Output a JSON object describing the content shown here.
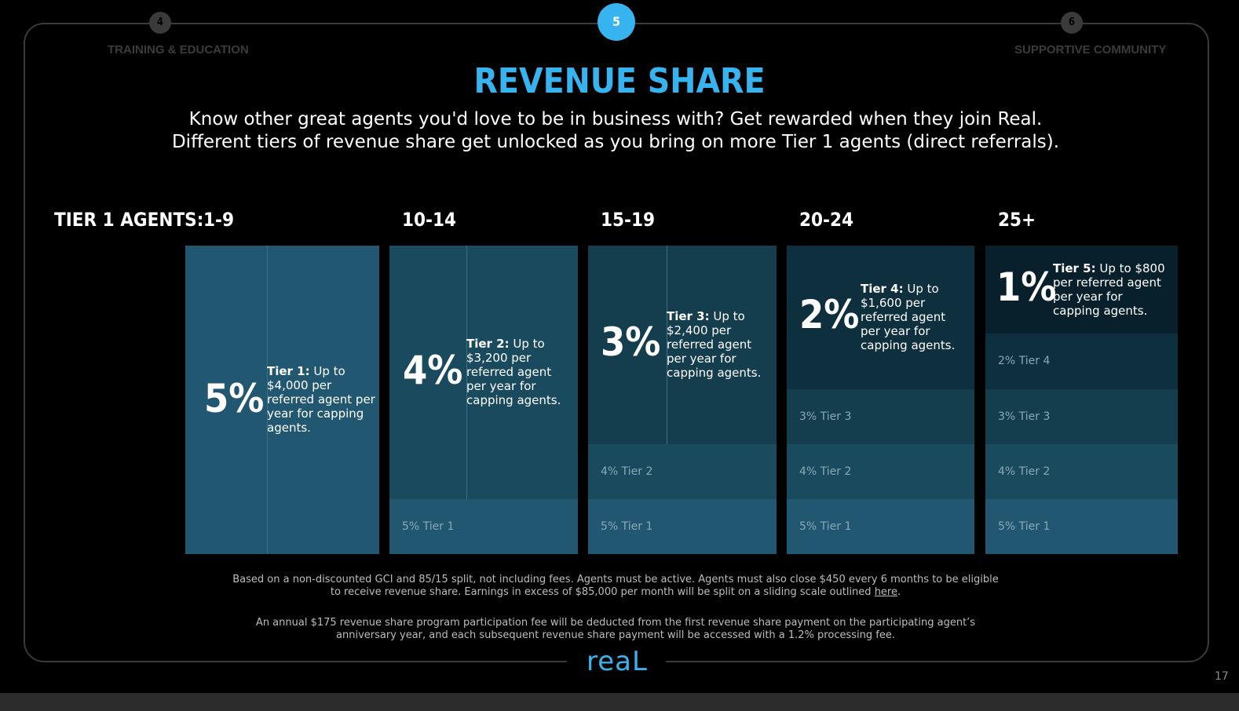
{
  "steps": {
    "prev": {
      "number": "4",
      "label": "TRAINING & EDUCATION"
    },
    "current": {
      "number": "5"
    },
    "next": {
      "number": "6",
      "label": "SUPPORTIVE COMMUNITY"
    }
  },
  "title": "REVENUE SHARE",
  "subtitle": {
    "line1": "Know other great agents you'd love to be in business with? Get rewarded when they join Real.",
    "line2": "Different tiers of revenue share get unlocked as you bring on more Tier 1 agents (direct referrals)."
  },
  "tier_agents_label": "TIER 1 AGENTS:",
  "columns": [
    {
      "range": "1-9",
      "pct": "5%",
      "tier_bold": "Tier 1:",
      "tier_text": " Up to $4,000 per referred agent per year for capping agents.",
      "bands": []
    },
    {
      "range": "10-14",
      "pct": "4%",
      "tier_bold": "Tier 2:",
      "tier_text": " Up to $3,200 per referred agent per year for capping agents.",
      "bands": [
        "5% Tier 1"
      ]
    },
    {
      "range": "15-19",
      "pct": "3%",
      "tier_bold": "Tier 3:",
      "tier_text": " Up to $2,400 per referred agent per year for capping agents.",
      "bands": [
        "4% Tier 2",
        "5% Tier 1"
      ]
    },
    {
      "range": "20-24",
      "pct": "2%",
      "tier_bold": "Tier 4:",
      "tier_text": " Up to $1,600 per referred agent per year for capping agents.",
      "bands": [
        "3% Tier 3",
        "4% Tier 2",
        "5% Tier 1"
      ]
    },
    {
      "range": "25+",
      "pct": "1%",
      "tier_bold": "Tier 5:",
      "tier_text": " Up to $800 per referred agent per year for capping agents.",
      "bands": [
        "2% Tier 4",
        "3% Tier 3",
        "4% Tier 2",
        "5% Tier 1"
      ]
    }
  ],
  "footnote1": {
    "line1": "Based on a non-discounted GCI and 85/15 split, not including fees. Agents must be active. Agents must also close $450 every 6 months to be eligible",
    "line2_pre": "to receive revenue share. Earnings in excess of $85,000 per month will be split on a sliding scale outlined ",
    "link": "here",
    "line2_post": "."
  },
  "footnote2": {
    "line1": "An annual $175 revenue share program participation fee will be deducted from the first revenue share payment on the participating agent’s",
    "line2": "anniversary year, and each subsequent revenue share payment will be accessed with a 1.2% processing fee."
  },
  "logo_text": "reaL",
  "page_number": "17",
  "colors": {
    "accent": "#37b3ef",
    "tier1": "#215770",
    "tier2": "#1a4a5e",
    "tier3": "#143d4e",
    "tier4": "#0e2f3d",
    "tier5": "#08202b"
  }
}
